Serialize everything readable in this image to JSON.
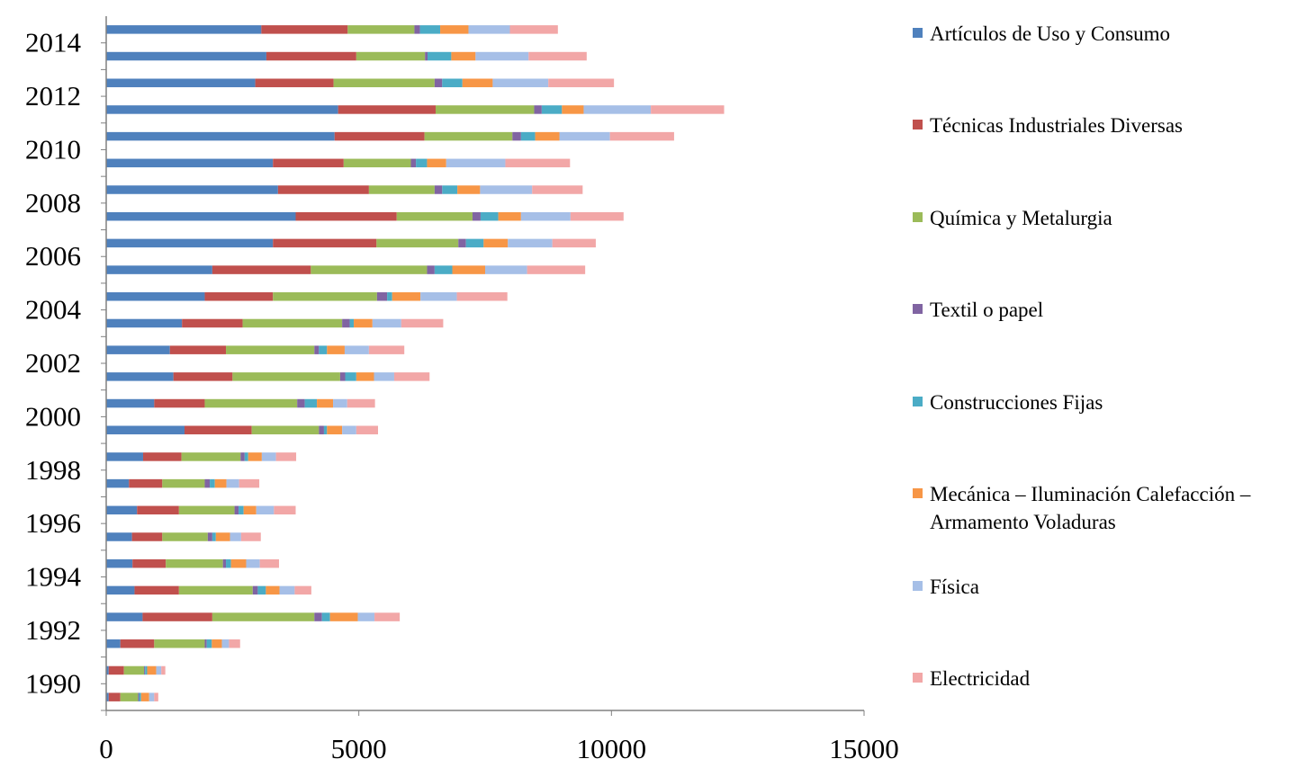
{
  "chart_data": {
    "type": "bar",
    "orientation": "horizontal",
    "stacked": true,
    "title": "",
    "xlabel": "",
    "ylabel": "",
    "xlim": [
      0,
      15000
    ],
    "x_ticks": [
      "0",
      "5000",
      "10000",
      "15000"
    ],
    "y_tick_labels": [
      "1990",
      "1992",
      "1994",
      "1996",
      "1998",
      "2000",
      "2002",
      "2004",
      "2006",
      "2008",
      "2010",
      "2012",
      "2014"
    ],
    "legend_position": "right",
    "grid": false,
    "categories": [
      "1990",
      "1991",
      "1992",
      "1993",
      "1994",
      "1995",
      "1996",
      "1997",
      "1998",
      "1999",
      "2000",
      "2001",
      "2002",
      "2003",
      "2004",
      "2005",
      "2006",
      "2007",
      "2008",
      "2009",
      "2010",
      "2011",
      "2012",
      "2013",
      "2014",
      "2015"
    ],
    "series": [
      {
        "name": "Artículos de Uso y Consumo",
        "color": "#4F81BD",
        "values": [
          50,
          50,
          280,
          720,
          560,
          520,
          510,
          610,
          450,
          730,
          1550,
          950,
          1330,
          1260,
          1500,
          1950,
          2100,
          3300,
          3750,
          3400,
          3300,
          4520,
          4590,
          2950,
          3170,
          3070
        ]
      },
      {
        "name": "Técnicas Industriales Diversas",
        "color": "#C0504D",
        "values": [
          230,
          300,
          670,
          1380,
          880,
          660,
          600,
          830,
          660,
          760,
          1330,
          1000,
          1170,
          1110,
          1200,
          1350,
          1950,
          2050,
          2000,
          1800,
          1400,
          1780,
          1930,
          1550,
          1780,
          1710
        ]
      },
      {
        "name": "Química y Metalurgia",
        "color": "#9BBB59",
        "values": [
          350,
          400,
          1000,
          2020,
          1460,
          1130,
          900,
          1100,
          840,
          1170,
          1330,
          1830,
          2130,
          1750,
          1970,
          2060,
          2300,
          1620,
          1500,
          1300,
          1330,
          1740,
          1950,
          2000,
          1360,
          1320
        ]
      },
      {
        "name": "Textil o papel",
        "color": "#8064A2",
        "values": [
          20,
          20,
          40,
          150,
          100,
          60,
          90,
          80,
          100,
          80,
          100,
          150,
          100,
          90,
          150,
          200,
          150,
          150,
          160,
          150,
          100,
          170,
          150,
          150,
          50,
          110
        ]
      },
      {
        "name": "Construcciones Fijas",
        "color": "#4BACC6",
        "values": [
          40,
          40,
          100,
          160,
          160,
          100,
          70,
          100,
          100,
          70,
          60,
          240,
          220,
          160,
          80,
          100,
          350,
          350,
          350,
          300,
          220,
          280,
          400,
          400,
          470,
          400
        ]
      },
      {
        "name": "Mecánica – Iluminación Calefacción – Armamento Voladuras",
        "color": "#F79646",
        "values": [
          160,
          180,
          200,
          550,
          270,
          300,
          280,
          250,
          230,
          270,
          300,
          320,
          350,
          350,
          370,
          560,
          650,
          480,
          450,
          450,
          380,
          480,
          430,
          600,
          480,
          560
        ]
      },
      {
        "name": "Física",
        "color": "#A6BFE7",
        "values": [
          100,
          100,
          140,
          330,
          300,
          270,
          220,
          350,
          250,
          280,
          280,
          280,
          400,
          480,
          570,
          720,
          830,
          880,
          980,
          1030,
          1170,
          1000,
          1330,
          1100,
          1050,
          820
        ]
      },
      {
        "name": "Electricidad",
        "color": "#F2A7A7",
        "values": [
          80,
          80,
          220,
          500,
          330,
          380,
          390,
          430,
          400,
          400,
          430,
          550,
          700,
          700,
          830,
          1000,
          1150,
          860,
          1050,
          1000,
          1280,
          1270,
          1450,
          1300,
          1150,
          950
        ]
      }
    ]
  }
}
